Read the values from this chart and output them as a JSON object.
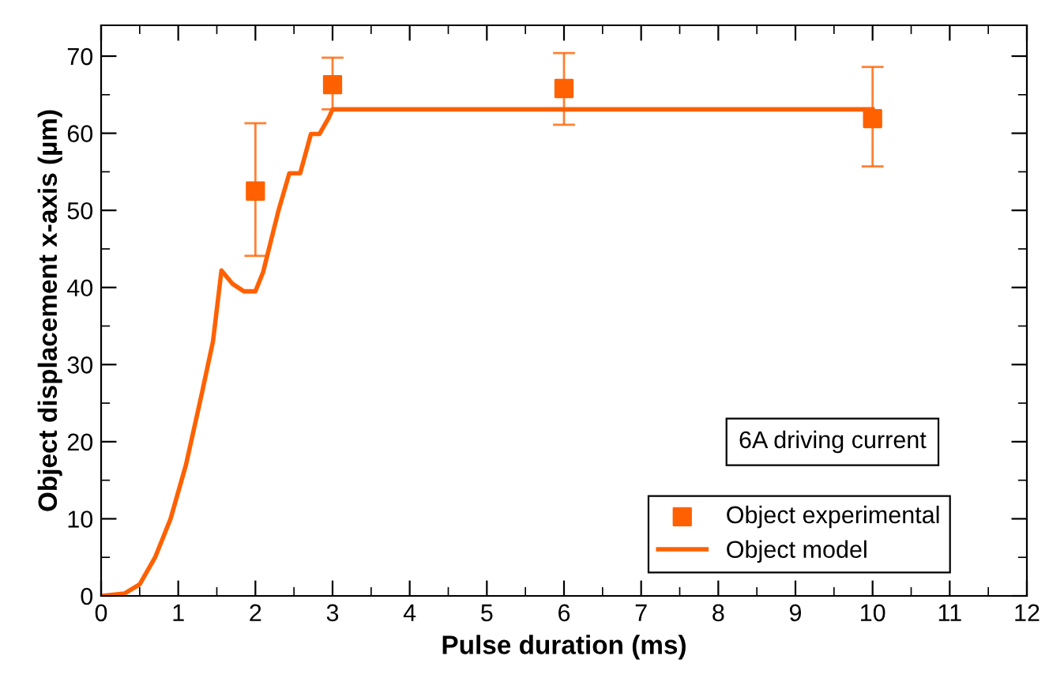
{
  "chart_data": {
    "type": "scatter",
    "xlabel": "Pulse duration (ms)",
    "ylabel": "Object displacement x-axis (µm)",
    "xlim": [
      0,
      12
    ],
    "ylim": [
      0,
      74
    ],
    "xticks": [
      0,
      1,
      2,
      3,
      4,
      5,
      6,
      7,
      8,
      9,
      10,
      11,
      12
    ],
    "yticks": [
      0,
      10,
      20,
      30,
      40,
      50,
      60,
      70
    ],
    "grid": false,
    "legend": "bottom right",
    "annotations": [
      "6A driving current"
    ],
    "series": [
      {
        "name": "Object experimental",
        "marker": "square",
        "color": "#ff6100",
        "x": [
          2,
          3,
          6,
          10
        ],
        "values": [
          52.5,
          66.3,
          65.8,
          61.9
        ],
        "errors": [
          [
            44.1,
            61.3
          ],
          [
            63.1,
            69.8
          ],
          [
            61.1,
            70.4
          ],
          [
            55.7,
            68.6
          ]
        ]
      },
      {
        "name": "Object model",
        "type": "line",
        "color": "#ff6100",
        "x": [
          0,
          0.3,
          0.5,
          0.7,
          0.9,
          1.1,
          1.3,
          1.45,
          1.56,
          1.7,
          1.85,
          2.0,
          2.1,
          2.3,
          2.44,
          2.58,
          2.72,
          2.83,
          2.95,
          3.0,
          10
        ],
        "values": [
          0,
          0.3,
          1.5,
          5,
          10,
          17,
          26,
          33,
          42.2,
          40.5,
          39.5,
          39.5,
          42,
          50,
          54.8,
          54.8,
          59.9,
          59.9,
          62,
          63.1,
          63.1
        ]
      }
    ]
  }
}
